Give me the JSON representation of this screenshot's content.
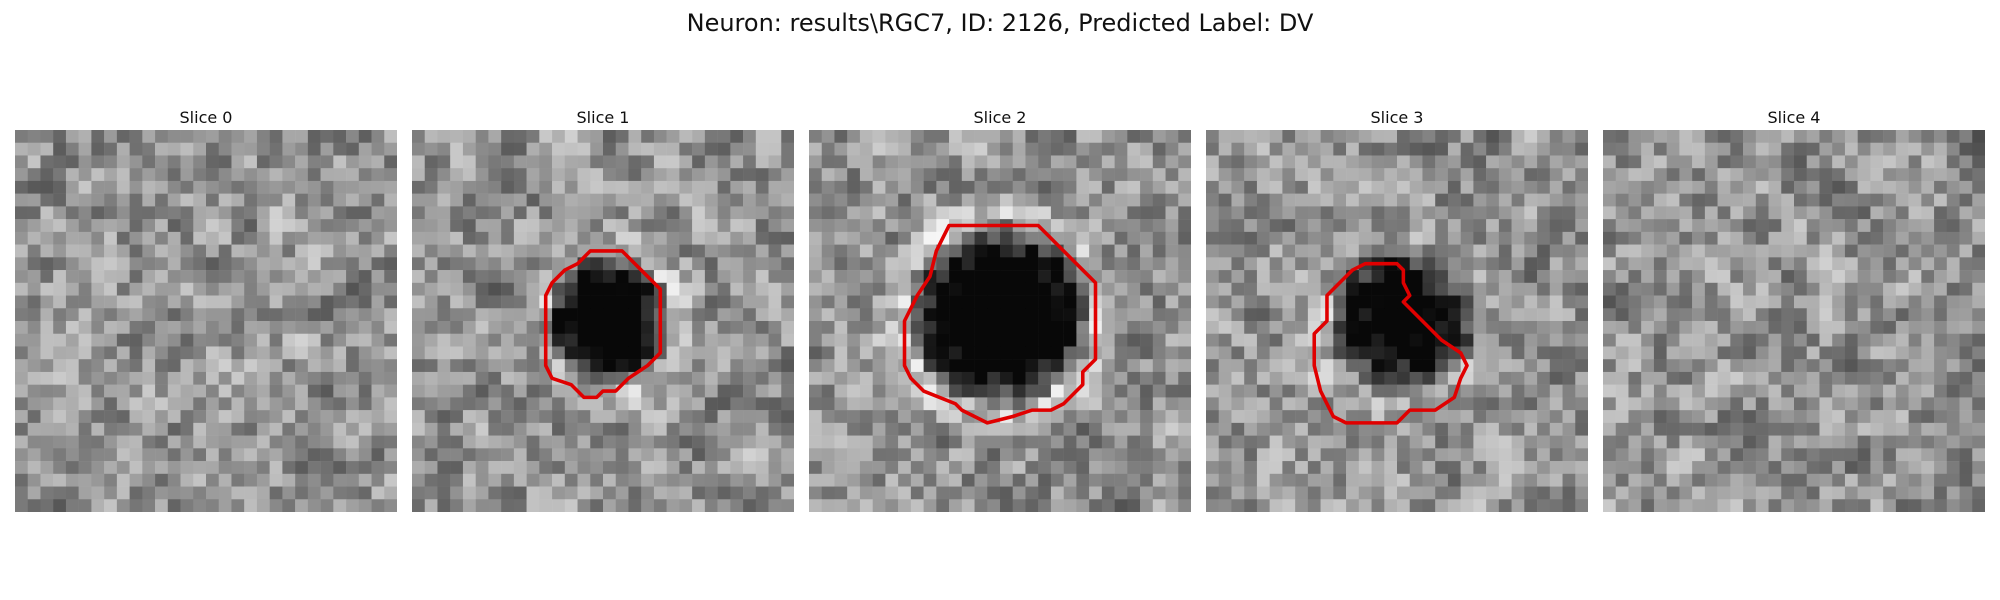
{
  "figure": {
    "title": "Neuron: results\\RGC7, ID: 2126, Predicted Label: DV"
  },
  "slices": [
    {
      "label": "Slice 0",
      "has_contour": false,
      "seed": 11,
      "blob": null,
      "contour": []
    },
    {
      "label": "Slice 1",
      "has_contour": true,
      "seed": 29,
      "blob": {
        "cx": 15.5,
        "cy": 15.0,
        "r": 5.2,
        "depth": 0.75,
        "halo": 0.18
      },
      "contour": [
        [
          14,
          9.5
        ],
        [
          16.5,
          9.5
        ],
        [
          18,
          11
        ],
        [
          19.5,
          12.5
        ],
        [
          19.5,
          14
        ],
        [
          19.5,
          17.5
        ],
        [
          18.5,
          18.5
        ],
        [
          17,
          19.5
        ],
        [
          16,
          20.5
        ],
        [
          15,
          20.5
        ],
        [
          14.5,
          21
        ],
        [
          13.5,
          21
        ],
        [
          12.5,
          20
        ],
        [
          11,
          19.5
        ],
        [
          10.5,
          18.5
        ],
        [
          10.5,
          16
        ],
        [
          10.5,
          13
        ],
        [
          11,
          12
        ],
        [
          12,
          11
        ],
        [
          13,
          10.5
        ]
      ],
      "contour_color": "#e00000"
    },
    {
      "label": "Slice 2",
      "has_contour": true,
      "seed": 47,
      "blob": {
        "cx": 15.0,
        "cy": 14.5,
        "r": 7.3,
        "depth": 0.8,
        "halo": 0.25
      },
      "contour": [
        [
          11,
          7.5
        ],
        [
          18,
          7.5
        ],
        [
          19.5,
          9
        ],
        [
          20.5,
          10
        ],
        [
          21.5,
          11
        ],
        [
          22.5,
          12
        ],
        [
          22.5,
          18
        ],
        [
          21.5,
          19
        ],
        [
          21.5,
          20
        ],
        [
          20,
          21.5
        ],
        [
          19,
          22
        ],
        [
          17.5,
          22
        ],
        [
          16,
          22.5
        ],
        [
          14,
          23
        ],
        [
          12,
          22
        ],
        [
          11.5,
          21.5
        ],
        [
          9,
          20.5
        ],
        [
          8,
          19.5
        ],
        [
          7.5,
          18.5
        ],
        [
          7.5,
          15
        ],
        [
          8.5,
          13
        ],
        [
          9.5,
          11.5
        ],
        [
          10,
          9.5
        ],
        [
          10.5,
          8.5
        ]
      ],
      "contour_color": "#e00000"
    },
    {
      "label": "Slice 3",
      "has_contour": true,
      "seed": 83,
      "blob": {
        "cx": 15.5,
        "cy": 15.0,
        "r": 6.0,
        "depth": 0.65,
        "halo": 0.12
      },
      "contour": [
        [
          12.5,
          10.5
        ],
        [
          15,
          10.5
        ],
        [
          15.5,
          11
        ],
        [
          15.5,
          12
        ],
        [
          16,
          13
        ],
        [
          15.5,
          13.5
        ],
        [
          16,
          14
        ],
        [
          17,
          15
        ],
        [
          18.5,
          16.5
        ],
        [
          20,
          17.5
        ],
        [
          20.5,
          18.5
        ],
        [
          20,
          19.5
        ],
        [
          19.5,
          21
        ],
        [
          18,
          22
        ],
        [
          16,
          22
        ],
        [
          15,
          23
        ],
        [
          13,
          23
        ],
        [
          11,
          23
        ],
        [
          10,
          22.5
        ],
        [
          9.5,
          21.5
        ],
        [
          9,
          20.5
        ],
        [
          8.5,
          18.5
        ],
        [
          8.5,
          16
        ],
        [
          9.5,
          15
        ],
        [
          9.5,
          13
        ],
        [
          10.5,
          12
        ],
        [
          11.5,
          11
        ]
      ],
      "contour_color": "#e00000"
    },
    {
      "label": "Slice 4",
      "has_contour": false,
      "seed": 131,
      "blob": null,
      "contour": []
    }
  ]
}
